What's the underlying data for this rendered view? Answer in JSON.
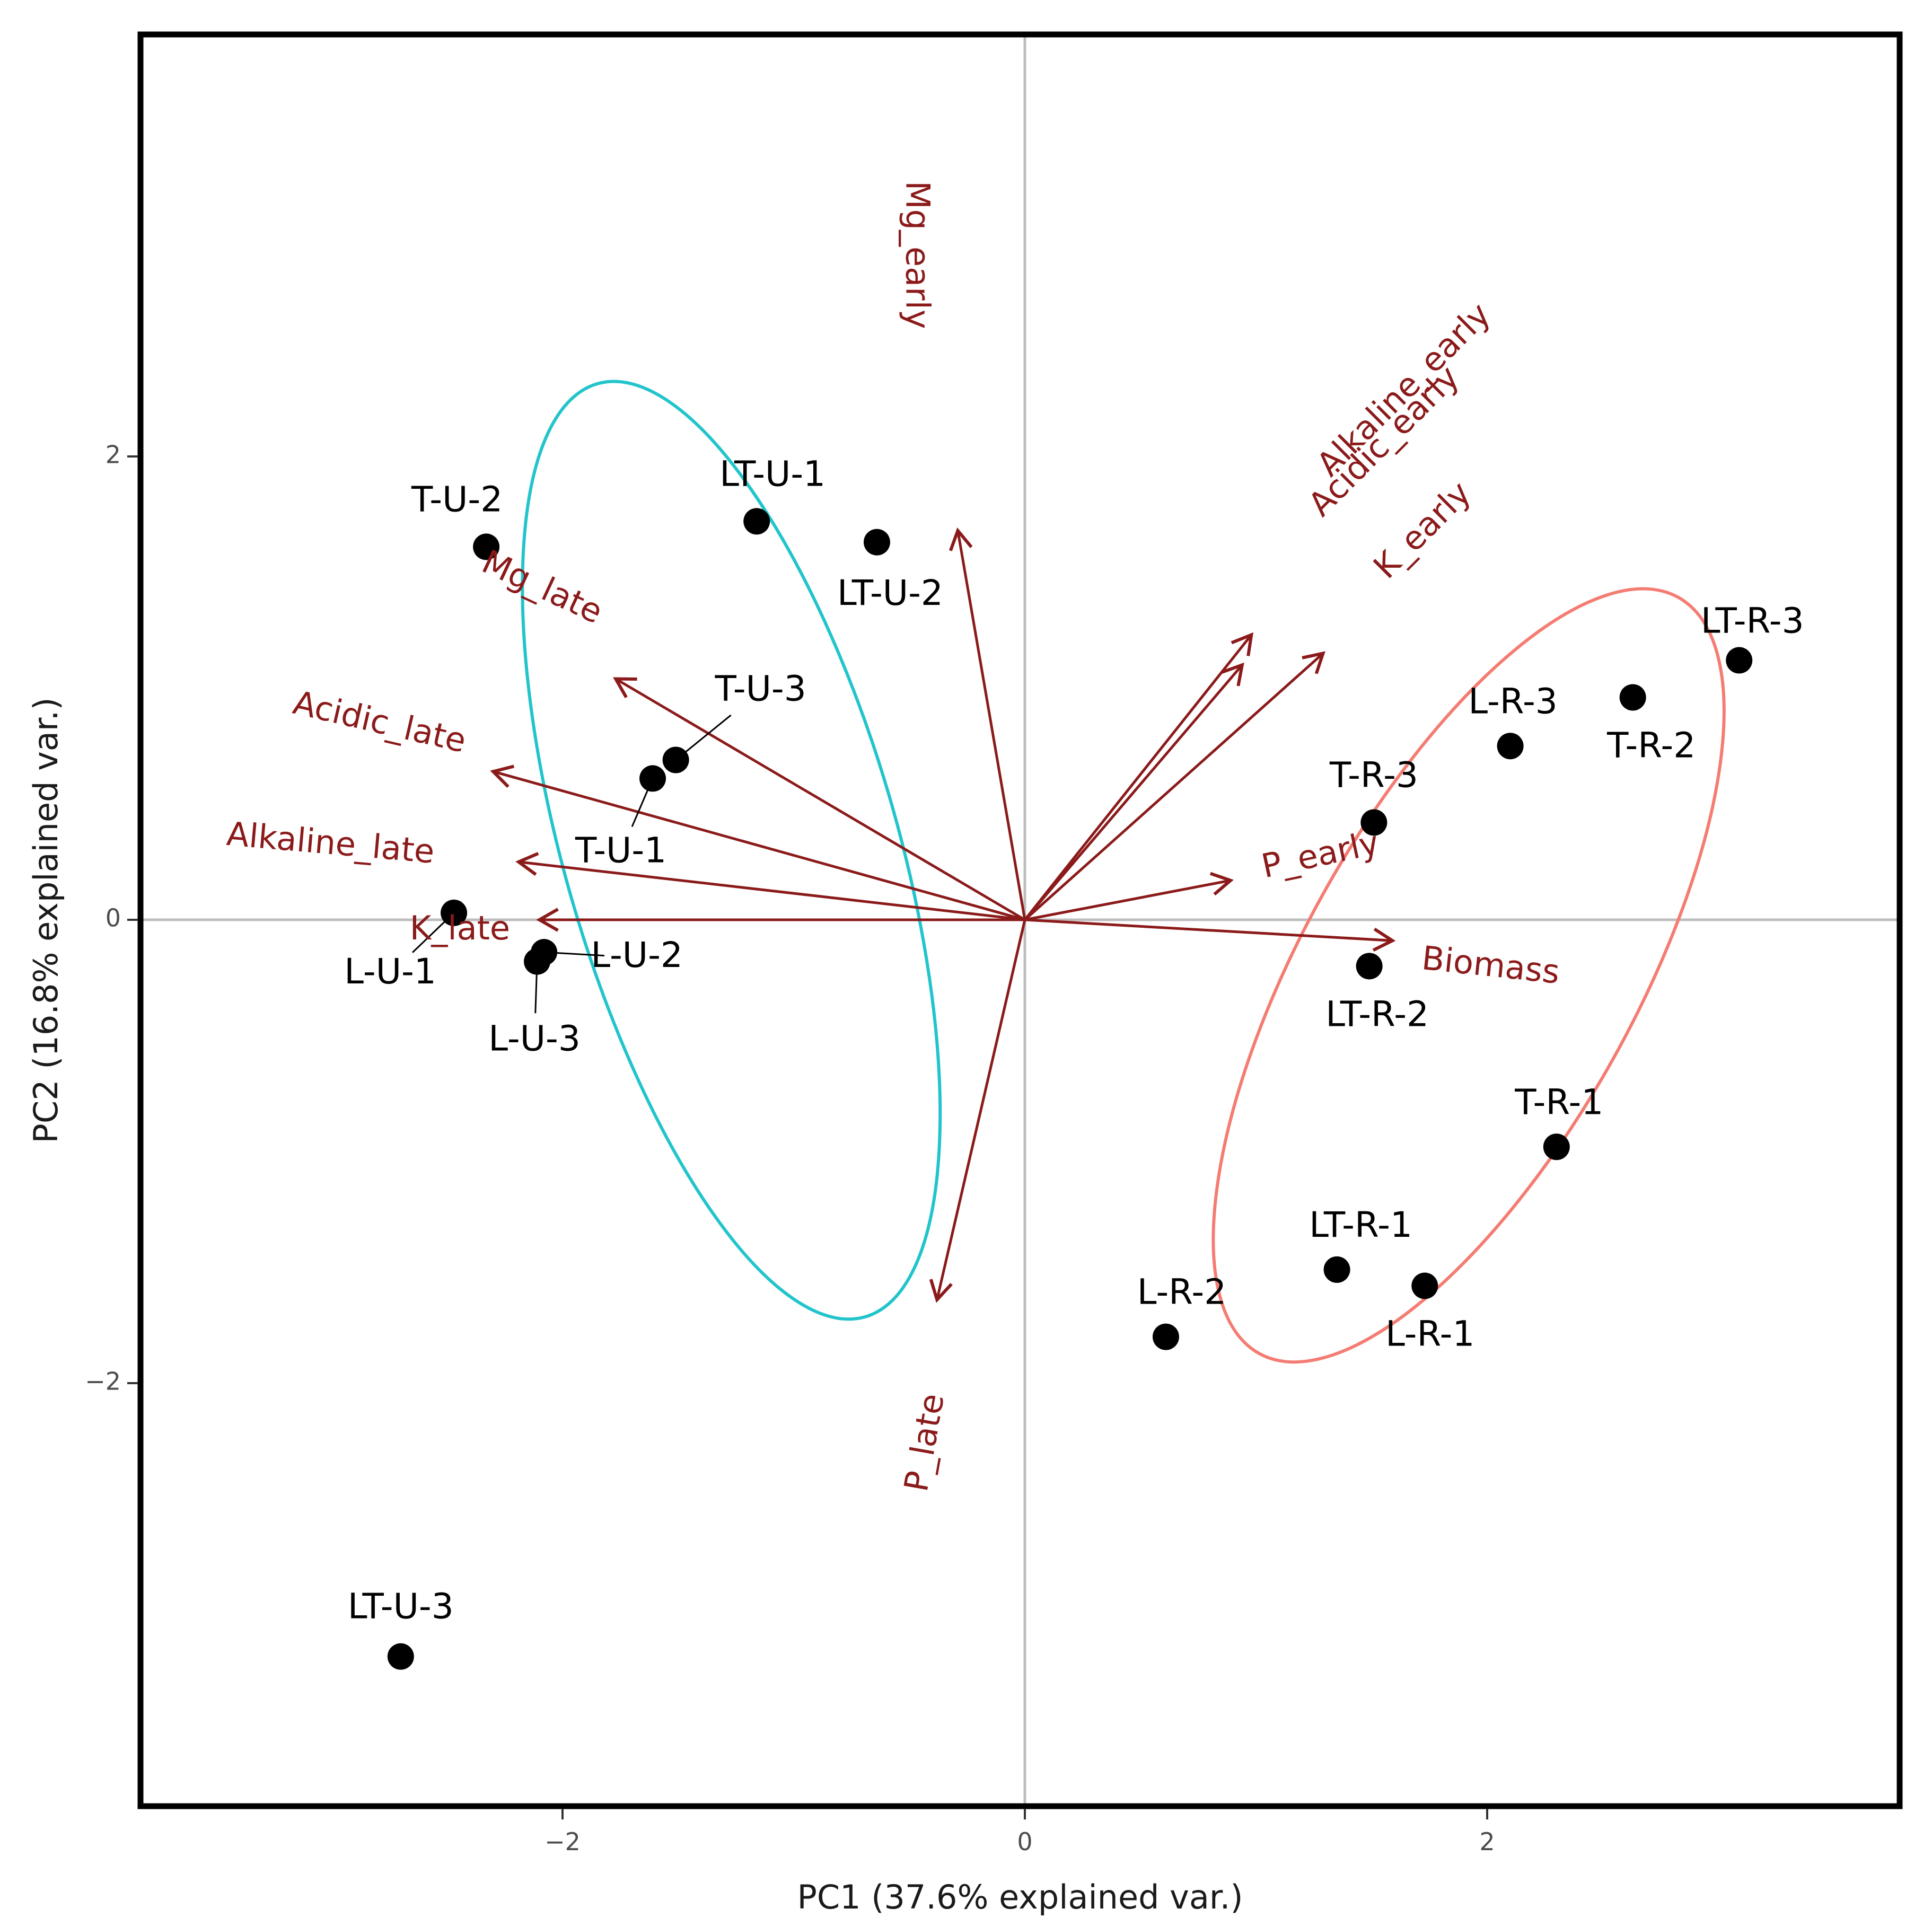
{
  "chart_data": {
    "type": "scatter",
    "subtype": "pca-biplot",
    "xlabel": "PC1 (37.6% explained var.)",
    "ylabel": "PC2 (16.8% explained var.)",
    "xlim": [
      -3.85,
      3.8
    ],
    "ylim": [
      -3.85,
      3.85
    ],
    "xticks": [
      -2,
      0,
      2
    ],
    "yticks": [
      -2,
      0,
      2
    ],
    "xtick_labels": [
      "−2",
      "0",
      "2"
    ],
    "ytick_labels": [
      "−2",
      "0",
      "2"
    ],
    "grid": false,
    "reference_lines": [
      0,
      0
    ],
    "colors": {
      "points": "#000000",
      "arrows": "#8b1a1a",
      "arrow_labels": "#8b1a1a",
      "ellipse_unfertilized": "#22c4cc",
      "ellipse_fertilized": "#f47c72",
      "reference_line": "#bdbdbd",
      "frame": "#000000"
    },
    "points": [
      {
        "label": "T-U-2",
        "x": -2.33,
        "y": 1.61
      },
      {
        "label": "LT-U-1",
        "x": -1.16,
        "y": 1.72
      },
      {
        "label": "LT-U-2",
        "x": -0.64,
        "y": 1.63
      },
      {
        "label": "T-U-3",
        "x": -1.51,
        "y": 0.69
      },
      {
        "label": "T-U-1",
        "x": -1.61,
        "y": 0.61
      },
      {
        "label": "L-U-1",
        "x": -2.47,
        "y": 0.03
      },
      {
        "label": "L-U-2",
        "x": -2.08,
        "y": -0.14
      },
      {
        "label": "L-U-3",
        "x": -2.11,
        "y": -0.18
      },
      {
        "label": "LT-U-3",
        "x": -2.7,
        "y": -3.18
      },
      {
        "label": "LT-R-3",
        "x": 3.09,
        "y": 1.12
      },
      {
        "label": "T-R-2",
        "x": 2.63,
        "y": 0.96
      },
      {
        "label": "L-R-3",
        "x": 2.1,
        "y": 0.75
      },
      {
        "label": "T-R-3",
        "x": 1.51,
        "y": 0.42
      },
      {
        "label": "LT-R-2",
        "x": 1.49,
        "y": -0.2
      },
      {
        "label": "T-R-1",
        "x": 2.3,
        "y": -0.98
      },
      {
        "label": "LT-R-1",
        "x": 1.35,
        "y": -1.51
      },
      {
        "label": "L-R-1",
        "x": 1.73,
        "y": -1.58
      },
      {
        "label": "L-R-2",
        "x": 0.61,
        "y": -1.8
      }
    ],
    "variables": [
      {
        "label": "Mg_early",
        "x": -0.29,
        "y": 1.68
      },
      {
        "label": "Alkaline_early",
        "x": 0.98,
        "y": 1.23
      },
      {
        "label": "Acidic_early",
        "x": 0.94,
        "y": 1.1
      },
      {
        "label": "K_early",
        "x": 1.29,
        "y": 1.15
      },
      {
        "label": "P_early",
        "x": 0.89,
        "y": 0.17
      },
      {
        "label": "Biomass",
        "x": 1.59,
        "y": -0.09
      },
      {
        "label": "P_late",
        "x": -0.38,
        "y": -1.64
      },
      {
        "label": "Mg_late",
        "x": -1.77,
        "y": 1.04
      },
      {
        "label": "Acidic_late",
        "x": -2.3,
        "y": 0.64
      },
      {
        "label": "Alkaline_late",
        "x": -2.19,
        "y": 0.25
      },
      {
        "label": "K_late",
        "x": -2.1,
        "y": 0.0
      }
    ],
    "ellipses": [
      {
        "group": "U",
        "color": "#22c4cc",
        "cx": -1.27,
        "cy": 0.3,
        "rx": 2.1,
        "ry": 0.72,
        "angle_deg": 106
      },
      {
        "group": "R",
        "color": "#f47c72",
        "cx": 1.92,
        "cy": -0.24,
        "rx": 1.87,
        "ry": 0.72,
        "angle_deg": 61
      }
    ]
  }
}
